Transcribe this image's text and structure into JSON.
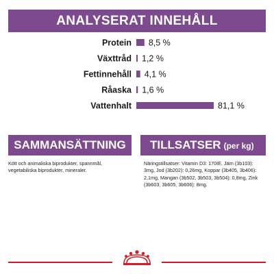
{
  "analysis": {
    "title": "ANALYSERAT INNEHÅLL"
  },
  "chart_data": {
    "type": "bar",
    "orientation": "horizontal",
    "categories": [
      "Protein",
      "Växttråd",
      "Fettinnehåll",
      "Råaska",
      "Vattenhalt"
    ],
    "values": [
      8.5,
      1.2,
      4.1,
      1.6,
      81.1
    ],
    "value_labels": [
      "8,5 %",
      "1,2 %",
      "4,1 %",
      "1,6 %",
      "81,1 %"
    ],
    "xlim": [
      0,
      81.1
    ],
    "bar_color": "#7e4a8f",
    "grid": false,
    "legend": "none"
  },
  "composition": {
    "title": "SAMMANSÄTTNING",
    "text": "Kött och animaliska biprodukter, spannmål, vegetabiliska biprodukter, mineraler."
  },
  "additives": {
    "title": "TILLSATSER",
    "title_suffix": "(per kg)",
    "text": "Näringstillsatser: Vitamin D3: 170IE, Järn (3b103): 3mg, Jod (3b202): 0,26mg, Koppar (3b405, 3b406): 2,1mg, Mangan (3b502, 3b503, 3b504): 0,8mg, Zink (3b603, 3b605, 3b606): 8mg."
  },
  "colors": {
    "accent": "#7e4a8f",
    "footer_line": "#d01c2a",
    "logo": "#d01c2a"
  },
  "logo": {
    "icon": "crown-icon"
  }
}
